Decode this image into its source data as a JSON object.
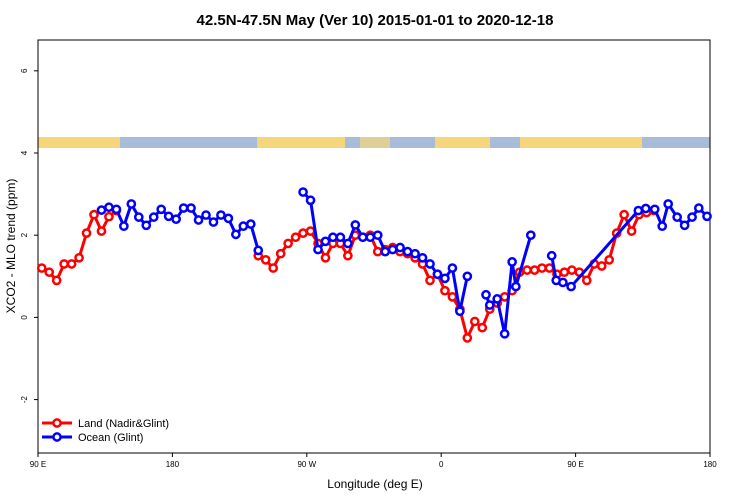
{
  "chart_data": {
    "type": "line",
    "title": "42.5N-47.5N May (Ver 10)   2015-01-01 to 2020-12-18",
    "x_label": "Longitude (deg E)",
    "y_label": "XCO2 - MLO trend (ppm)",
    "xlim": [
      90,
      540
    ],
    "ylim": [
      -3.3,
      6.75
    ],
    "xticks": [
      {
        "value": 90,
        "label": "90 E"
      },
      180,
      {
        "value": 270,
        "label": "90 W"
      },
      {
        "value": 360,
        "label": "0"
      },
      {
        "value": 450,
        "label": "90 E"
      },
      {
        "value": 540,
        "label": "180"
      }
    ],
    "yticks": [
      -2,
      0,
      2,
      4,
      6
    ],
    "legend": "bottom-left",
    "series": [
      {
        "name": "Land (Nadir&Glint)",
        "color": "#ff0000",
        "x": [
          92.5,
          97.5,
          102.5,
          107.5,
          112.5,
          117.5,
          122.5,
          127.5,
          132.5,
          137.5,
          142.5,
          147.5,
          237.5,
          242.5,
          247.5,
          252.5,
          257.5,
          262.5,
          267.5,
          272.5,
          277.5,
          282.5,
          287.5,
          292.5,
          297.5,
          302.5,
          307.5,
          312.5,
          317.5,
          322.5,
          327.5,
          332.5,
          337.5,
          342.5,
          347.5,
          352.5,
          357.5,
          362.5,
          367.5,
          372.5,
          377.5,
          382.5,
          387.5,
          392.5,
          397.5,
          402.5,
          407.5,
          412.5,
          417.5,
          422.5,
          427.5,
          432.5,
          437.5,
          442.5,
          447.5,
          452.5,
          457.5,
          462.5,
          467.5,
          472.5,
          477.5,
          482.5,
          487.5,
          492.5,
          497.5,
          502.5
        ],
        "values": [
          1.2,
          1.1,
          0.9,
          1.3,
          1.3,
          1.45,
          2.05,
          2.5,
          2.1,
          2.45,
          2.6,
          null,
          1.5,
          1.4,
          1.2,
          1.55,
          1.8,
          1.95,
          2.05,
          2.1,
          1.8,
          1.45,
          1.8,
          1.8,
          1.5,
          2.0,
          1.95,
          2.0,
          1.6,
          1.65,
          1.7,
          1.6,
          1.55,
          1.45,
          1.3,
          0.9,
          1.05,
          0.65,
          0.5,
          0.2,
          -0.5,
          -0.1,
          -0.25,
          0.2,
          0.35,
          0.5,
          0.65,
          1.1,
          1.15,
          1.15,
          1.2,
          1.2,
          1.05,
          1.1,
          1.15,
          1.1,
          0.9,
          1.3,
          1.25,
          1.4,
          2.05,
          2.5,
          2.1,
          2.5,
          2.55,
          2.6
        ]
      },
      {
        "name": "Ocean (Glint)",
        "color": "#0000ff",
        "x": [
          132.5,
          137.5,
          142.5,
          147.5,
          152.5,
          157.5,
          162.5,
          167.5,
          172.5,
          177.5,
          182.5,
          187.5,
          192.5,
          197.5,
          202.5,
          207.5,
          212.5,
          217.5,
          222.5,
          227.5,
          232.5,
          237.5,
          242.5,
          267.5,
          272.5,
          277.5,
          282.5,
          287.5,
          292.5,
          297.5,
          302.5,
          307.5,
          312.5,
          317.5,
          322.5,
          327.5,
          332.5,
          337.5,
          342.5,
          347.5,
          352.5,
          357.5,
          362.5,
          367.5,
          372.5,
          377.5,
          382.5,
          390,
          392.5,
          397.5,
          402.5,
          407.5,
          410,
          420,
          425,
          434,
          437,
          441.5,
          447,
          492,
          497,
          503,
          508,
          512,
          518,
          523,
          528,
          532.5,
          538
        ],
        "values": [
          2.61,
          2.68,
          2.63,
          2.22,
          2.76,
          2.44,
          2.24,
          2.44,
          2.63,
          2.46,
          2.39,
          2.66,
          2.66,
          2.37,
          2.49,
          2.32,
          2.49,
          2.41,
          2.02,
          2.22,
          2.27,
          1.63,
          null,
          3.05,
          2.85,
          1.65,
          1.85,
          1.95,
          1.95,
          1.8,
          2.25,
          1.95,
          1.95,
          2.0,
          1.6,
          1.65,
          1.7,
          1.6,
          1.55,
          1.45,
          1.3,
          1.05,
          0.95,
          1.2,
          0.15,
          1.0,
          null,
          0.55,
          0.3,
          0.45,
          -0.4,
          1.35,
          0.75,
          2.0,
          null,
          1.5,
          0.9,
          0.85,
          0.75,
          2.6,
          2.65,
          2.63,
          2.22,
          2.76,
          2.44,
          2.24,
          2.44,
          2.66,
          2.46
        ]
      }
    ]
  }
}
